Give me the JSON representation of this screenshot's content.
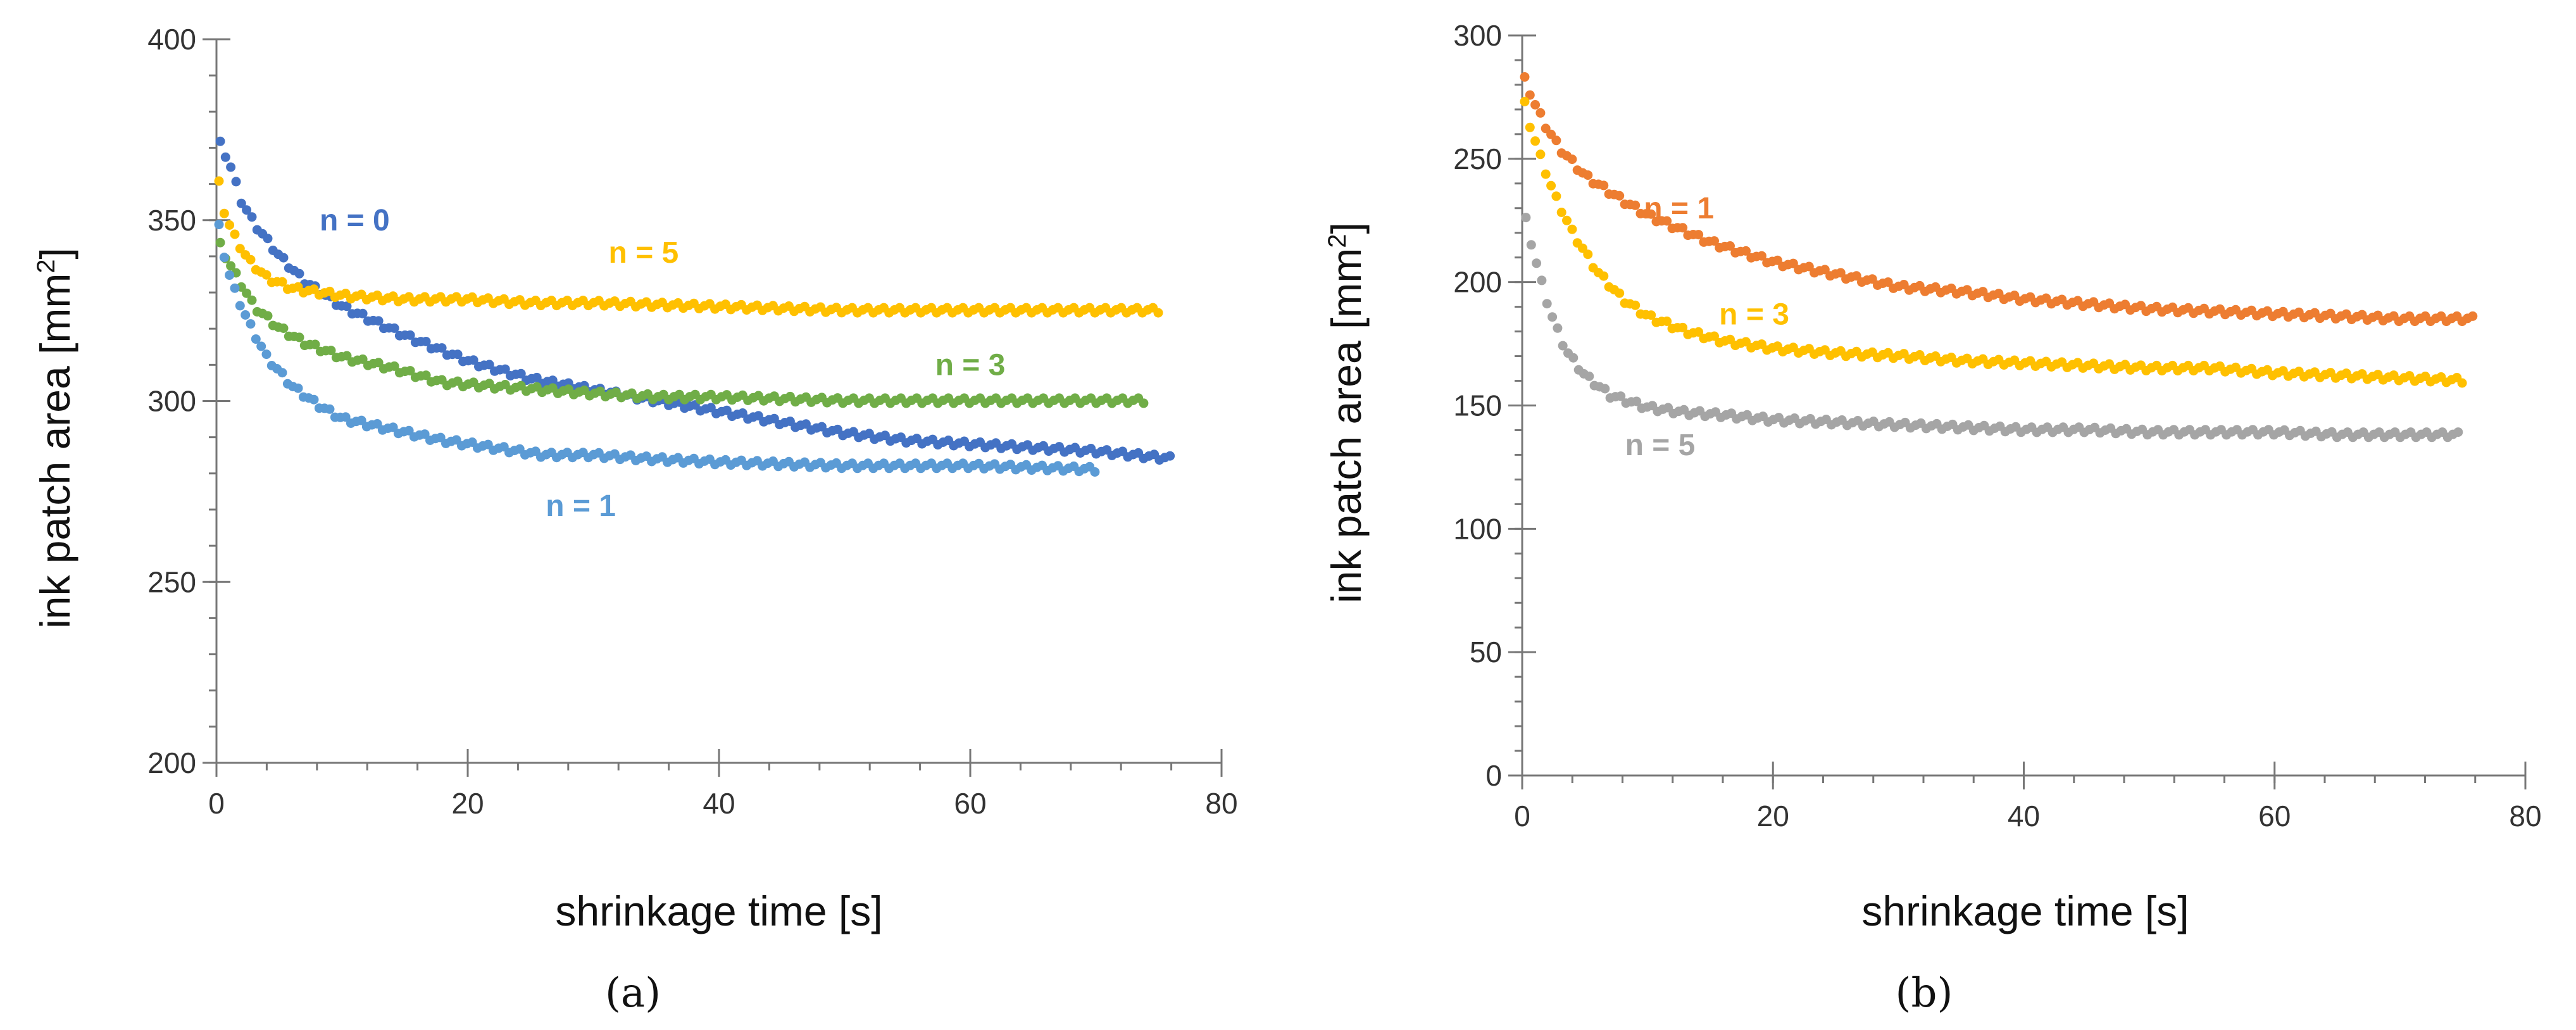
{
  "figure": {
    "panel_a_label": "(a)",
    "panel_b_label": "(b)"
  },
  "chart_data": [
    {
      "type": "scatter",
      "panel": "a",
      "title": "",
      "xlabel": "shrinkage time [s]",
      "ylabel_main": "ink patch area [mm",
      "ylabel_sup": "2",
      "ylabel_end": "]",
      "xlim": [
        0,
        80
      ],
      "ylim": [
        200,
        400
      ],
      "xticks": [
        0,
        20,
        40,
        60,
        80
      ],
      "yticks": [
        200,
        250,
        300,
        350,
        400
      ],
      "grid": false,
      "series": [
        {
          "name": "n = 0",
          "color": "#4472C4",
          "label_pos": [
            11,
            350
          ],
          "points": [
            [
              0.3,
              371
            ],
            [
              1,
              366
            ],
            [
              2,
              355
            ],
            [
              3,
              349
            ],
            [
              5,
              340
            ],
            [
              7,
              333
            ],
            [
              10,
              326
            ],
            [
              15,
              318
            ],
            [
              20,
              311
            ],
            [
              25,
              306
            ],
            [
              30,
              303
            ],
            [
              35,
              300
            ],
            [
              40,
              297
            ],
            [
              45,
              294
            ],
            [
              50,
              291
            ],
            [
              55,
              289
            ],
            [
              60,
              288
            ],
            [
              65,
              287
            ],
            [
              70,
              286
            ],
            [
              76,
              284
            ]
          ]
        },
        {
          "name": "n = 5",
          "color": "#FFC000",
          "label_pos": [
            34,
            341
          ],
          "points": [
            [
              0.2,
              360
            ],
            [
              0.7,
              351
            ],
            [
              1.5,
              345
            ],
            [
              2.5,
              339
            ],
            [
              4,
              334
            ],
            [
              6,
              331
            ],
            [
              8,
              330
            ],
            [
              10,
              329
            ],
            [
              15,
              328
            ],
            [
              20,
              328
            ],
            [
              25,
              327
            ],
            [
              30,
              327
            ],
            [
              40,
              326
            ],
            [
              50,
              325
            ],
            [
              60,
              325
            ],
            [
              70,
              325
            ],
            [
              75,
              325
            ]
          ]
        },
        {
          "name": "n = 3",
          "color": "#70AD47",
          "label_pos": [
            60,
            310
          ],
          "points": [
            [
              0.3,
              343
            ],
            [
              1,
              338
            ],
            [
              2,
              332
            ],
            [
              3,
              326
            ],
            [
              5,
              320
            ],
            [
              7,
              316
            ],
            [
              10,
              312
            ],
            [
              14,
              309
            ],
            [
              18,
              305
            ],
            [
              22,
              304
            ],
            [
              26,
              303
            ],
            [
              30,
              302
            ],
            [
              35,
              301
            ],
            [
              40,
              301
            ],
            [
              50,
              300
            ],
            [
              60,
              300
            ],
            [
              70,
              300
            ],
            [
              74,
              300
            ]
          ]
        },
        {
          "name": "n = 1",
          "color": "#5B9BD5",
          "label_pos": [
            29,
            271
          ],
          "points": [
            [
              0.2,
              348
            ],
            [
              0.8,
              337
            ],
            [
              1.5,
              330
            ],
            [
              2.5,
              322
            ],
            [
              4,
              312
            ],
            [
              6,
              304
            ],
            [
              8,
              299
            ],
            [
              10,
              295
            ],
            [
              14,
              292
            ],
            [
              18,
              289
            ],
            [
              22,
              287
            ],
            [
              26,
              285
            ],
            [
              30,
              285
            ],
            [
              34,
              284
            ],
            [
              40,
              283
            ],
            [
              50,
              282
            ],
            [
              60,
              282
            ],
            [
              70,
              281
            ]
          ]
        }
      ]
    },
    {
      "type": "scatter",
      "panel": "b",
      "title": "",
      "xlabel": "shrinkage time [s]",
      "ylabel_main": "ink patch area [mm",
      "ylabel_sup": "2",
      "ylabel_end": "]",
      "xlim": [
        0,
        80
      ],
      "ylim": [
        0,
        300
      ],
      "xticks": [
        0,
        20,
        40,
        60,
        80
      ],
      "yticks": [
        0,
        50,
        100,
        150,
        200,
        250,
        300
      ],
      "grid": false,
      "series": [
        {
          "name": "n = 1",
          "color": "#ED7D31",
          "label_pos": [
            12.5,
            230
          ],
          "points": [
            [
              0.2,
              282
            ],
            [
              1,
              272
            ],
            [
              2,
              262
            ],
            [
              3,
              254
            ],
            [
              5,
              243
            ],
            [
              8,
              233
            ],
            [
              10,
              227
            ],
            [
              15,
              216
            ],
            [
              20,
              208
            ],
            [
              25,
              203
            ],
            [
              30,
              198
            ],
            [
              35,
              196
            ],
            [
              40,
              193
            ],
            [
              45,
              191
            ],
            [
              50,
              189
            ],
            [
              55,
              188
            ],
            [
              60,
              187
            ],
            [
              65,
              186
            ],
            [
              70,
              185
            ],
            [
              76,
              185
            ]
          ]
        },
        {
          "name": "n = 3",
          "color": "#FFC000",
          "label_pos": [
            18.5,
            187
          ],
          "points": [
            [
              0.2,
              272
            ],
            [
              0.7,
              262
            ],
            [
              1.5,
              250
            ],
            [
              2.5,
              236
            ],
            [
              4,
              220
            ],
            [
              6,
              204
            ],
            [
              8,
              193
            ],
            [
              10,
              186
            ],
            [
              13,
              180
            ],
            [
              16,
              176
            ],
            [
              20,
              173
            ],
            [
              25,
              171
            ],
            [
              30,
              170
            ],
            [
              35,
              168
            ],
            [
              40,
              167
            ],
            [
              45,
              166
            ],
            [
              50,
              165
            ],
            [
              55,
              165
            ],
            [
              60,
              163
            ],
            [
              65,
              162
            ],
            [
              70,
              161
            ],
            [
              75,
              160
            ]
          ]
        },
        {
          "name": "n = 5",
          "color": "#A5A5A5",
          "label_pos": [
            11,
            134
          ],
          "points": [
            [
              0.3,
              225
            ],
            [
              1,
              210
            ],
            [
              1.8,
              195
            ],
            [
              2.5,
              184
            ],
            [
              3.5,
              172
            ],
            [
              5,
              162
            ],
            [
              7,
              154
            ],
            [
              10,
              149
            ],
            [
              13,
              147
            ],
            [
              16,
              146
            ],
            [
              20,
              144
            ],
            [
              25,
              143
            ],
            [
              30,
              142
            ],
            [
              35,
              141
            ],
            [
              40,
              140
            ],
            [
              45,
              140
            ],
            [
              50,
              139
            ],
            [
              55,
              139
            ],
            [
              60,
              139
            ],
            [
              65,
              138
            ],
            [
              70,
              138
            ],
            [
              75,
              138
            ]
          ]
        }
      ]
    }
  ]
}
